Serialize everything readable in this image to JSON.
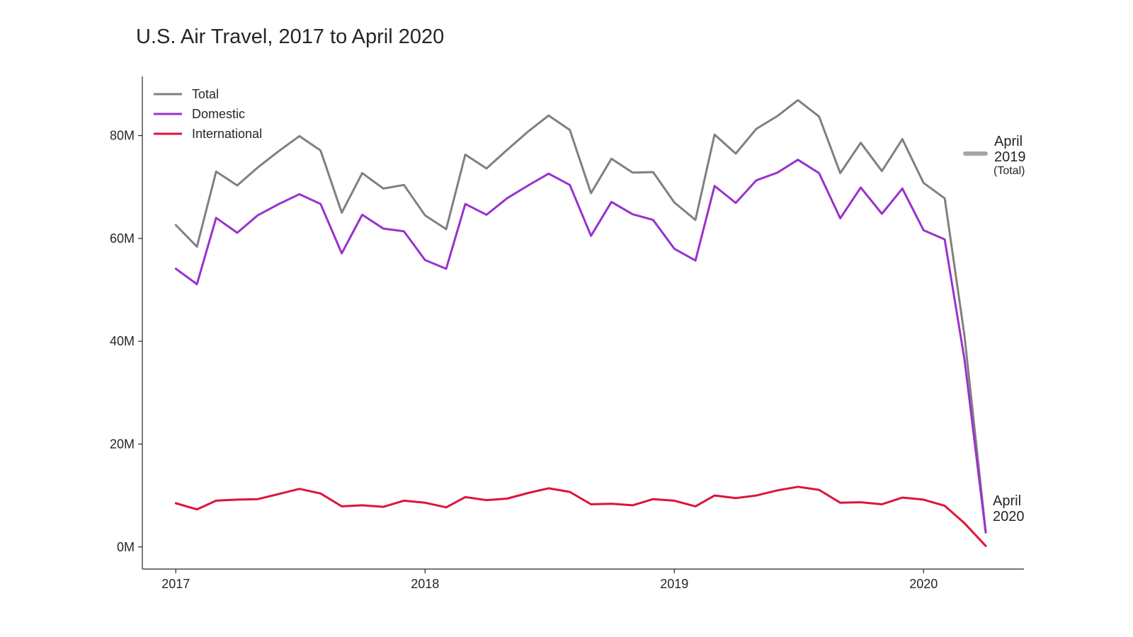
{
  "chart_data": {
    "type": "line",
    "title": "U.S. Air Travel, 2017 to April 2020",
    "xlabel": "",
    "ylabel": "",
    "x": [
      "2017-01",
      "2017-02",
      "2017-03",
      "2017-04",
      "2017-05",
      "2017-06",
      "2017-07",
      "2017-08",
      "2017-09",
      "2017-10",
      "2017-11",
      "2017-12",
      "2018-01",
      "2018-02",
      "2018-03",
      "2018-04",
      "2018-05",
      "2018-06",
      "2018-07",
      "2018-08",
      "2018-09",
      "2018-10",
      "2018-11",
      "2018-12",
      "2019-01",
      "2019-02",
      "2019-03",
      "2019-04",
      "2019-05",
      "2019-06",
      "2019-07",
      "2019-08",
      "2019-09",
      "2019-10",
      "2019-11",
      "2019-12",
      "2020-01",
      "2020-02",
      "2020-03",
      "2020-04"
    ],
    "x_ticks": [
      "2017",
      "2018",
      "2019",
      "2020"
    ],
    "y_ticks": [
      "0M",
      "20M",
      "40M",
      "60M",
      "80M"
    ],
    "y_tick_values": [
      0,
      20,
      40,
      60,
      80
    ],
    "y_unit": "millions of passengers",
    "ylim": [
      -4.3,
      91.5
    ],
    "xlim": [
      "2016-11-13",
      "2020-05-27"
    ],
    "grid": false,
    "legend_position": "top-left",
    "series": [
      {
        "name": "Total",
        "color": "#808080",
        "values": [
          62.6,
          58.4,
          73.0,
          70.3,
          73.8,
          77.0,
          79.9,
          77.1,
          65.0,
          72.7,
          69.7,
          70.4,
          64.5,
          61.8,
          76.3,
          73.6,
          77.2,
          80.8,
          83.9,
          81.1,
          68.8,
          75.5,
          72.8,
          72.9,
          67.0,
          63.6,
          80.2,
          76.5,
          81.3,
          83.8,
          86.9,
          83.7,
          72.7,
          78.6,
          73.1,
          79.3,
          70.8,
          67.8,
          41.0,
          3.0
        ]
      },
      {
        "name": "Domestic",
        "color": "#9932CC",
        "values": [
          54.1,
          51.1,
          64.0,
          61.1,
          64.5,
          66.7,
          68.6,
          66.7,
          57.1,
          64.6,
          61.9,
          61.4,
          55.8,
          54.1,
          66.7,
          64.6,
          67.8,
          70.3,
          72.6,
          70.4,
          60.5,
          67.1,
          64.7,
          63.6,
          58.0,
          55.7,
          70.2,
          66.9,
          71.3,
          72.8,
          75.3,
          72.7,
          63.9,
          69.9,
          64.8,
          69.7,
          61.6,
          59.8,
          36.4,
          2.8
        ]
      },
      {
        "name": "International",
        "color": "#DC143C",
        "values": [
          8.5,
          7.3,
          9.0,
          9.2,
          9.3,
          10.3,
          11.3,
          10.4,
          7.9,
          8.1,
          7.8,
          9.0,
          8.6,
          7.7,
          9.7,
          9.1,
          9.4,
          10.5,
          11.4,
          10.7,
          8.3,
          8.4,
          8.1,
          9.3,
          9.0,
          7.9,
          10.0,
          9.5,
          10.0,
          11.0,
          11.7,
          11.1,
          8.6,
          8.7,
          8.3,
          9.6,
          9.2,
          8.0,
          4.6,
          0.2
        ]
      }
    ],
    "annotations": [
      {
        "lines": [
          "April",
          "2019"
        ],
        "sub": "(Total)",
        "marker_color": "#a6a6a6",
        "x": "2019-04",
        "series": "Total"
      },
      {
        "lines": [
          "April",
          "2020"
        ],
        "x": "2020-04"
      }
    ]
  }
}
